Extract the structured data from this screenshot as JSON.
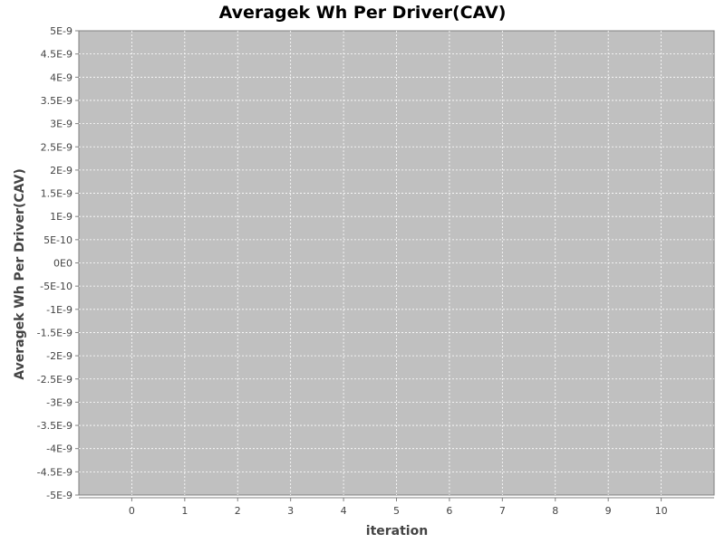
{
  "chart_data": {
    "type": "line",
    "title": "Averagek Wh Per Driver(CAV)",
    "xlabel": "iteration",
    "ylabel": "Averagek Wh Per Driver(CAV)",
    "x_ticks": [
      0,
      1,
      2,
      3,
      4,
      5,
      6,
      7,
      8,
      9,
      10
    ],
    "x_tick_labels": [
      "0",
      "1",
      "2",
      "3",
      "4",
      "5",
      "6",
      "7",
      "8",
      "9",
      "10"
    ],
    "xlim": [
      -1,
      11
    ],
    "ylim": [
      -5e-09,
      5e-09
    ],
    "y_ticks": [
      5e-09,
      4.5e-09,
      4e-09,
      3.5e-09,
      3e-09,
      2.5e-09,
      2e-09,
      1.5e-09,
      1e-09,
      5e-10,
      0,
      -5e-10,
      -1e-09,
      -1.5e-09,
      -2e-09,
      -2.5e-09,
      -3e-09,
      -3.5e-09,
      -4e-09,
      -4.5e-09,
      -5e-09
    ],
    "y_tick_labels": [
      "5E-9",
      "4.5E-9",
      "4E-9",
      "3.5E-9",
      "3E-9",
      "2.5E-9",
      "2E-9",
      "1.5E-9",
      "1E-9",
      "5E-10",
      "0E0",
      "-5E-10",
      "-1E-9",
      "-1.5E-9",
      "-2E-9",
      "-2.5E-9",
      "-3E-9",
      "-3.5E-9",
      "-4E-9",
      "-4.5E-9",
      "-5E-9"
    ],
    "grid": true,
    "series": [],
    "colors": {
      "plot_background": "#c0c0c0",
      "grid": "#ffffff",
      "text": "#444444"
    }
  }
}
